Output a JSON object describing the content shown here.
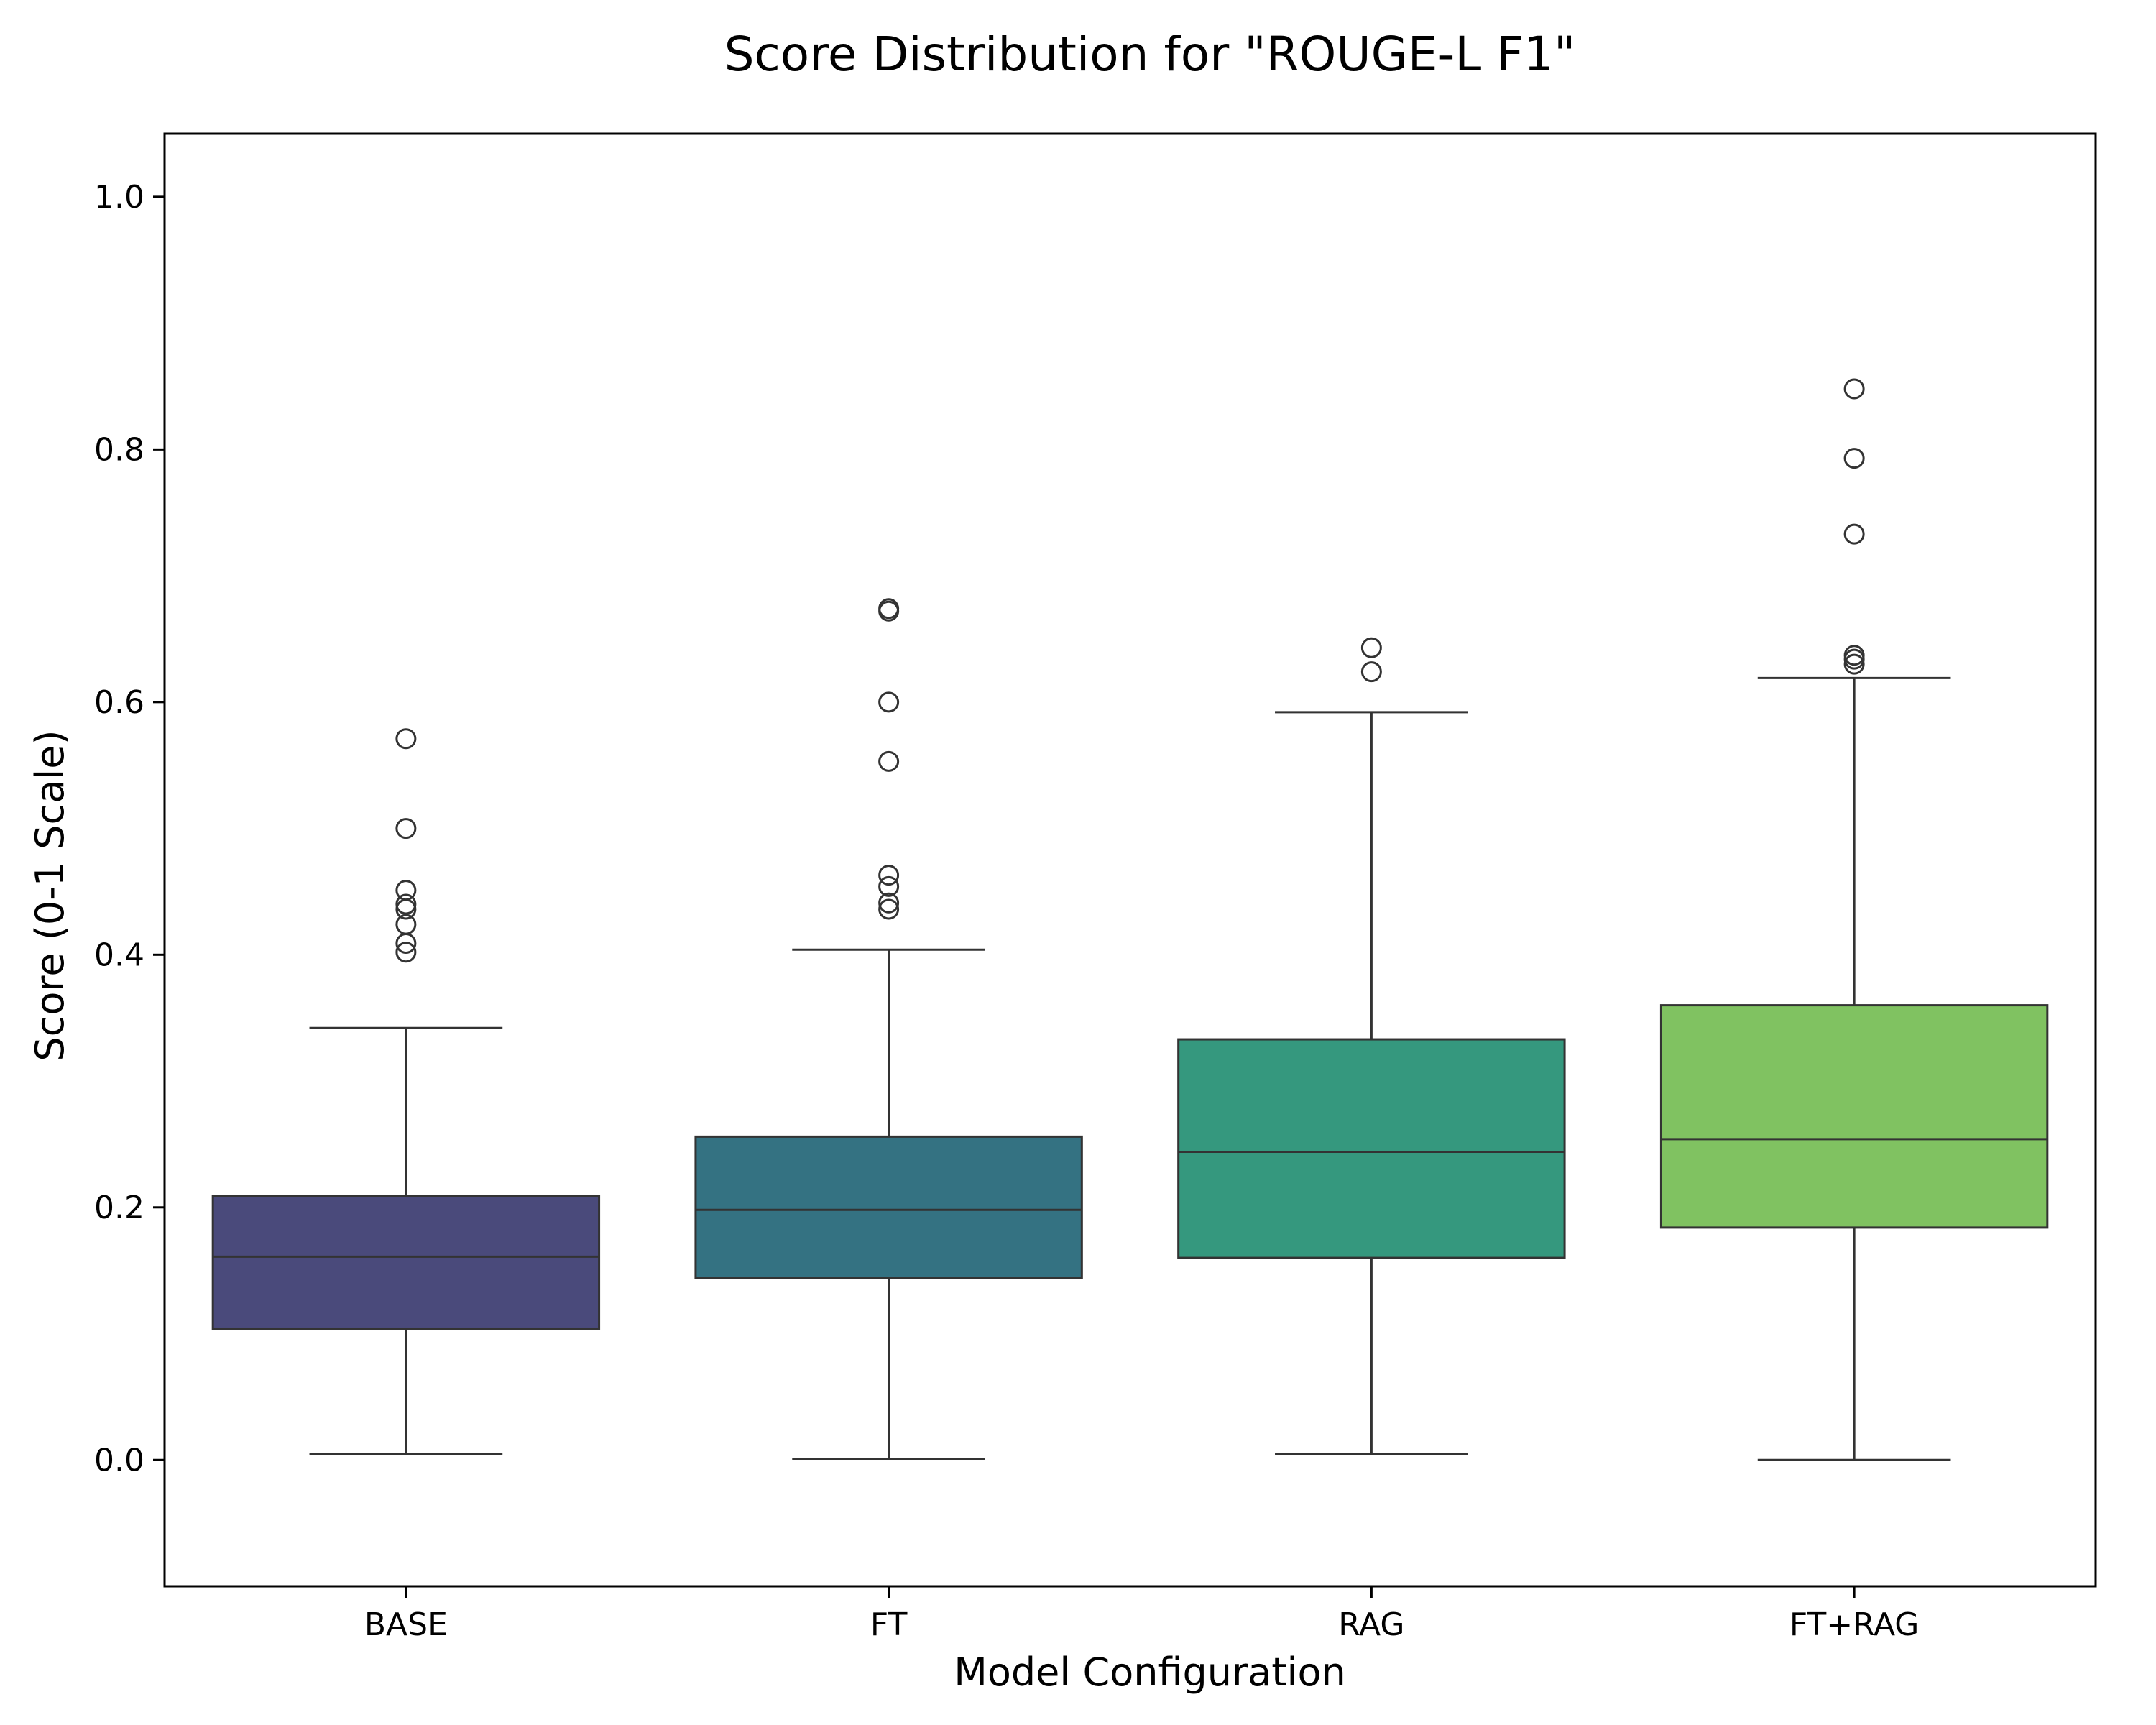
{
  "chart_data": {
    "type": "box",
    "title": "Score Distribution for \"ROUGE-L F1\"",
    "xlabel": "Model Configuration",
    "ylabel": "Score (0-1 Scale)",
    "ylim": [
      -0.1,
      1.05
    ],
    "yticks": [
      "0.0",
      "0.2",
      "0.4",
      "0.6",
      "0.8",
      "1.0"
    ],
    "yticks_values": [
      0.0,
      0.2,
      0.4,
      0.6,
      0.8,
      1.0
    ],
    "grid": false,
    "categories": [
      "BASE",
      "FT",
      "RAG",
      "FT+RAG"
    ],
    "series": [
      {
        "category": "BASE",
        "color": "#4a4a7b",
        "whisker_low": 0.005,
        "q1": 0.104,
        "median": 0.161,
        "q3": 0.209,
        "whisker_high": 0.342,
        "outliers": [
          0.571,
          0.5,
          0.451,
          0.44,
          0.436,
          0.424,
          0.409,
          0.402
        ]
      },
      {
        "category": "FT",
        "color": "#347282",
        "whisker_low": 0.001,
        "q1": 0.144,
        "median": 0.198,
        "q3": 0.256,
        "whisker_high": 0.404,
        "outliers": [
          0.674,
          0.672,
          0.6,
          0.553,
          0.463,
          0.454,
          0.441,
          0.436
        ]
      },
      {
        "category": "RAG",
        "color": "#35987e",
        "whisker_low": 0.005,
        "q1": 0.16,
        "median": 0.244,
        "q3": 0.333,
        "whisker_high": 0.592,
        "outliers": [
          0.643,
          0.624
        ]
      },
      {
        "category": "FT+RAG",
        "color": "#80c261",
        "whisker_low": 0.0,
        "q1": 0.184,
        "median": 0.254,
        "q3": 0.36,
        "whisker_high": 0.619,
        "outliers": [
          0.848,
          0.793,
          0.733,
          0.637,
          0.634,
          0.63
        ]
      }
    ]
  }
}
